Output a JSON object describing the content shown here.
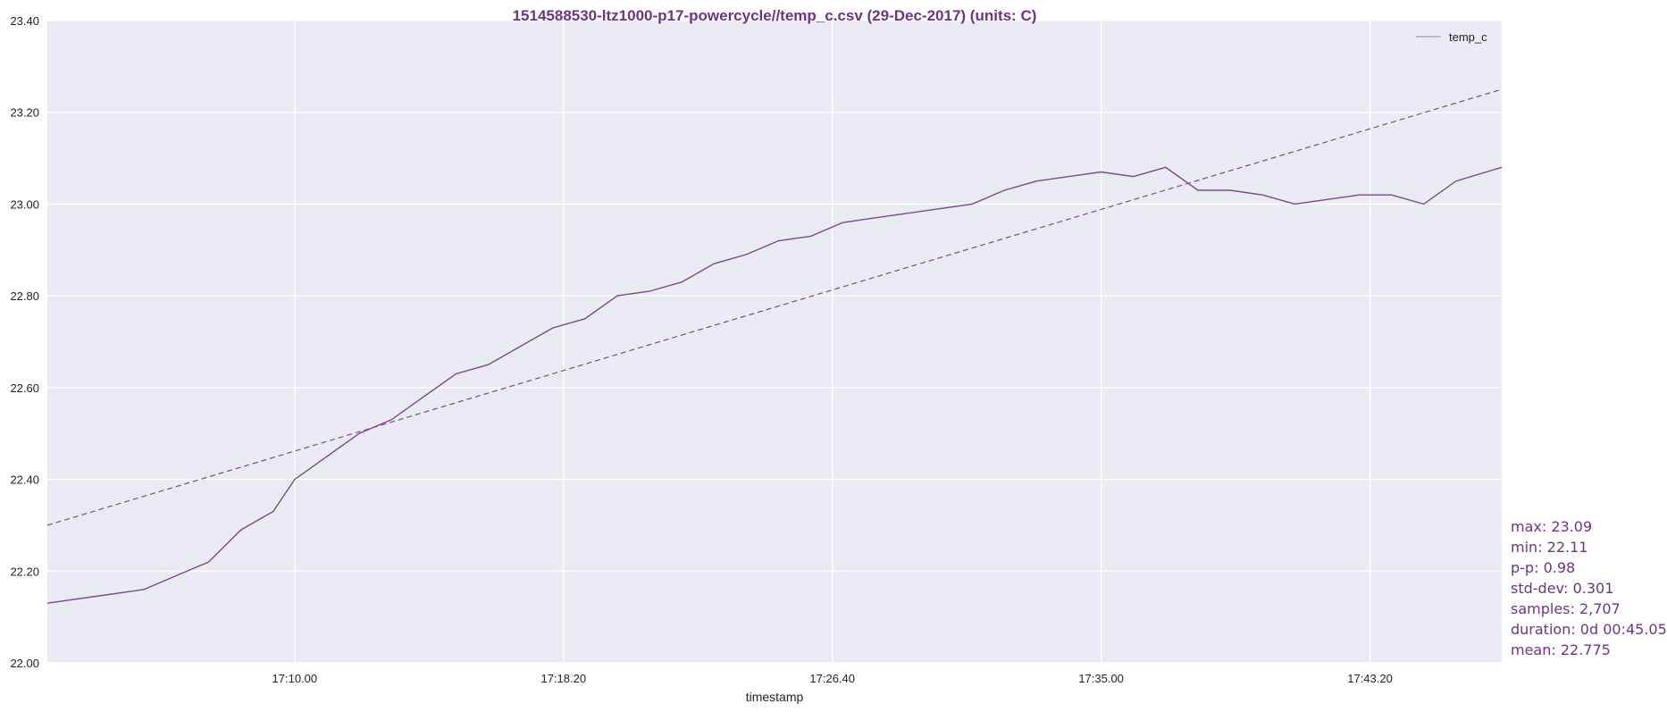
{
  "colors": {
    "series": "#7b4a8c",
    "title": "#6c3483",
    "plot_bg": "#eaeaf2",
    "grid": "#ffffff",
    "stats_text": "#6c3483"
  },
  "stats": [
    "max: 23.09",
    "min: 22.11",
    "p-p: 0.98",
    "std-dev: 0.301",
    "samples: 2,707",
    "duration: 0d 00:45.05",
    "mean: 22.775"
  ],
  "chart_data": {
    "type": "line",
    "title": "1514588530-ltz1000-p17-powercycle//temp_c.csv (29-Dec-2017) (units: C)",
    "xlabel": "timestamp",
    "ylabel": "",
    "x_range": [
      "17:02:20",
      "17:47:25"
    ],
    "ylim": [
      22.0,
      23.4
    ],
    "y_ticks": [
      "22.00",
      "22.20",
      "22.40",
      "22.60",
      "22.80",
      "23.00",
      "23.20",
      "23.40"
    ],
    "x_ticks": [
      "17:10.00",
      "17:18.20",
      "17:26.40",
      "17:35.00",
      "17:43.20"
    ],
    "grid": true,
    "legend_position": "top-right",
    "series": [
      {
        "name": "temp_c",
        "style": "solid",
        "x": [
          "17:02:20",
          "17:04:20",
          "17:05:20",
          "17:06:20",
          "17:07:20",
          "17:08:20",
          "17:09:20",
          "17:10:00",
          "17:11:00",
          "17:12:00",
          "17:13:00",
          "17:14:00",
          "17:15:00",
          "17:16:00",
          "17:17:00",
          "17:18:00",
          "17:19:00",
          "17:20:00",
          "17:21:00",
          "17:22:00",
          "17:23:00",
          "17:24:00",
          "17:25:00",
          "17:26:00",
          "17:27:00",
          "17:28:00",
          "17:29:00",
          "17:30:00",
          "17:31:00",
          "17:32:00",
          "17:33:00",
          "17:34:00",
          "17:35:00",
          "17:36:00",
          "17:37:00",
          "17:38:00",
          "17:39:00",
          "17:40:00",
          "17:41:00",
          "17:42:00",
          "17:43:00",
          "17:44:00",
          "17:45:00",
          "17:46:00",
          "17:47:25"
        ],
        "values": [
          22.13,
          22.15,
          22.16,
          22.19,
          22.22,
          22.29,
          22.33,
          22.4,
          22.45,
          22.5,
          22.53,
          22.58,
          22.63,
          22.65,
          22.69,
          22.73,
          22.75,
          22.8,
          22.81,
          22.83,
          22.87,
          22.89,
          22.92,
          22.93,
          22.96,
          22.97,
          22.98,
          22.99,
          23.0,
          23.03,
          23.05,
          23.06,
          23.07,
          23.06,
          23.08,
          23.03,
          23.03,
          23.02,
          23.0,
          23.01,
          23.02,
          23.02,
          23.0,
          23.05,
          23.08
        ]
      },
      {
        "name": "",
        "style": "dashed",
        "x": [
          "17:02:20",
          "17:47:25"
        ],
        "values": [
          22.3,
          23.25
        ]
      }
    ]
  }
}
